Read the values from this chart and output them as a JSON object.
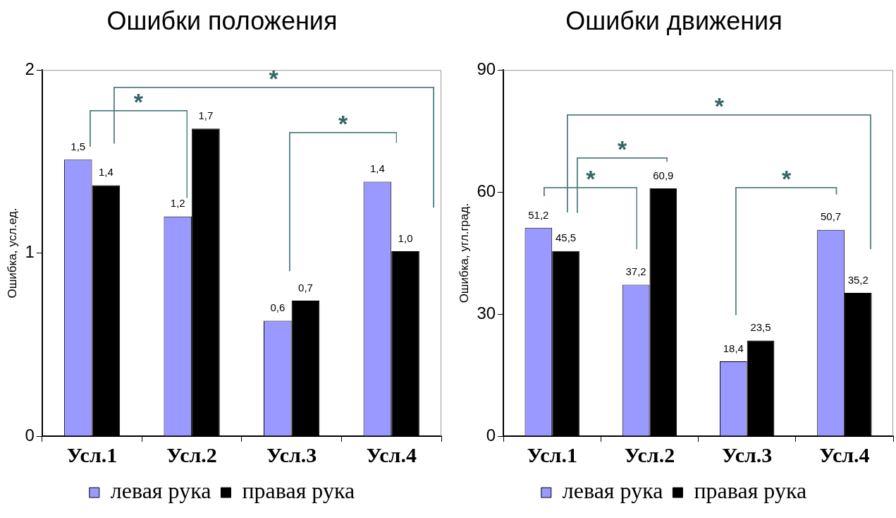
{
  "chart_data": [
    {
      "type": "bar",
      "title": "Ошибки положения",
      "ylabel": "Ошибка, усл.ед.",
      "categories": [
        "Усл.1",
        "Усл.2",
        "Усл.3",
        "Усл.4"
      ],
      "series": [
        {
          "name": "левая рука",
          "color": "#9999ff",
          "values": [
            1.51,
            1.2,
            0.63,
            1.39
          ],
          "value_labels": [
            "1,5",
            "1,2",
            "0,6",
            "1,4"
          ]
        },
        {
          "name": "правая рука",
          "color": "#000000",
          "values": [
            1.37,
            1.68,
            0.74,
            1.01
          ],
          "value_labels": [
            "1,4",
            "1,7",
            "0,7",
            "1,0"
          ]
        }
      ],
      "ylim": [
        0,
        2
      ],
      "yticks": [
        0,
        1,
        2
      ],
      "grid": false,
      "legend": "bottom",
      "annotations": [
        "*",
        "*",
        "*"
      ]
    },
    {
      "type": "bar",
      "title": "Ошибки движения",
      "ylabel": "Ошибка, угл.град.",
      "categories": [
        "Усл.1",
        "Усл.2",
        "Усл.3",
        "Усл.4"
      ],
      "series": [
        {
          "name": "левая рука",
          "color": "#9999ff",
          "values": [
            51.2,
            37.2,
            18.4,
            50.7
          ],
          "value_labels": [
            "51,2",
            "37,2",
            "18,4",
            "50,7"
          ]
        },
        {
          "name": "правая рука",
          "color": "#000000",
          "values": [
            45.5,
            60.9,
            23.5,
            35.2
          ],
          "value_labels": [
            "45,5",
            "60,9",
            "23,5",
            "35,2"
          ]
        }
      ],
      "ylim": [
        0,
        90
      ],
      "yticks": [
        0,
        30,
        60,
        90
      ],
      "grid": false,
      "legend": "bottom",
      "annotations": [
        "*",
        "*",
        "*",
        "*"
      ]
    }
  ]
}
